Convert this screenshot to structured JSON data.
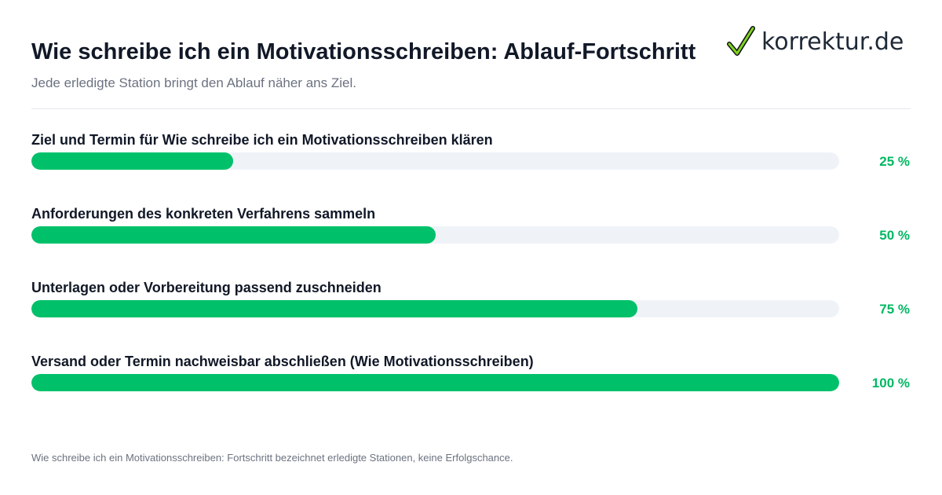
{
  "header": {
    "title": "Wie schreibe ich ein Motivationsschreiben: Ablauf-Fortschritt",
    "subtitle": "Jede erledigte Station bringt den Ablauf näher ans Ziel."
  },
  "logo": {
    "text": "korrektur.de",
    "icon": "checkmark-icon"
  },
  "colors": {
    "fill": "#00c16a",
    "track": "#eff3f8",
    "percent_text": "#00b862"
  },
  "chart_data": {
    "type": "bar",
    "orientation": "horizontal",
    "title": "Wie schreibe ich ein Motivationsschreiben: Ablauf-Fortschritt",
    "subtitle": "Jede erledigte Station bringt den Ablauf näher ans Ziel.",
    "categories": [
      "Ziel und Termin für Wie schreibe ich ein Motivationsschreiben klären",
      "Anforderungen des konkreten Verfahrens sammeln",
      "Unterlagen oder Vorbereitung passend zuschneiden",
      "Versand oder Termin nachweisbar abschließen (Wie Motivationsschreiben)"
    ],
    "values": [
      25,
      50,
      75,
      100
    ],
    "value_labels": [
      "25 %",
      "50 %",
      "75 %",
      "100 %"
    ],
    "xlim": [
      0,
      100
    ],
    "grid": false
  },
  "footnote": "Wie schreibe ich ein Motivationsschreiben: Fortschritt bezeichnet erledigte Stationen, keine Erfolgschance."
}
